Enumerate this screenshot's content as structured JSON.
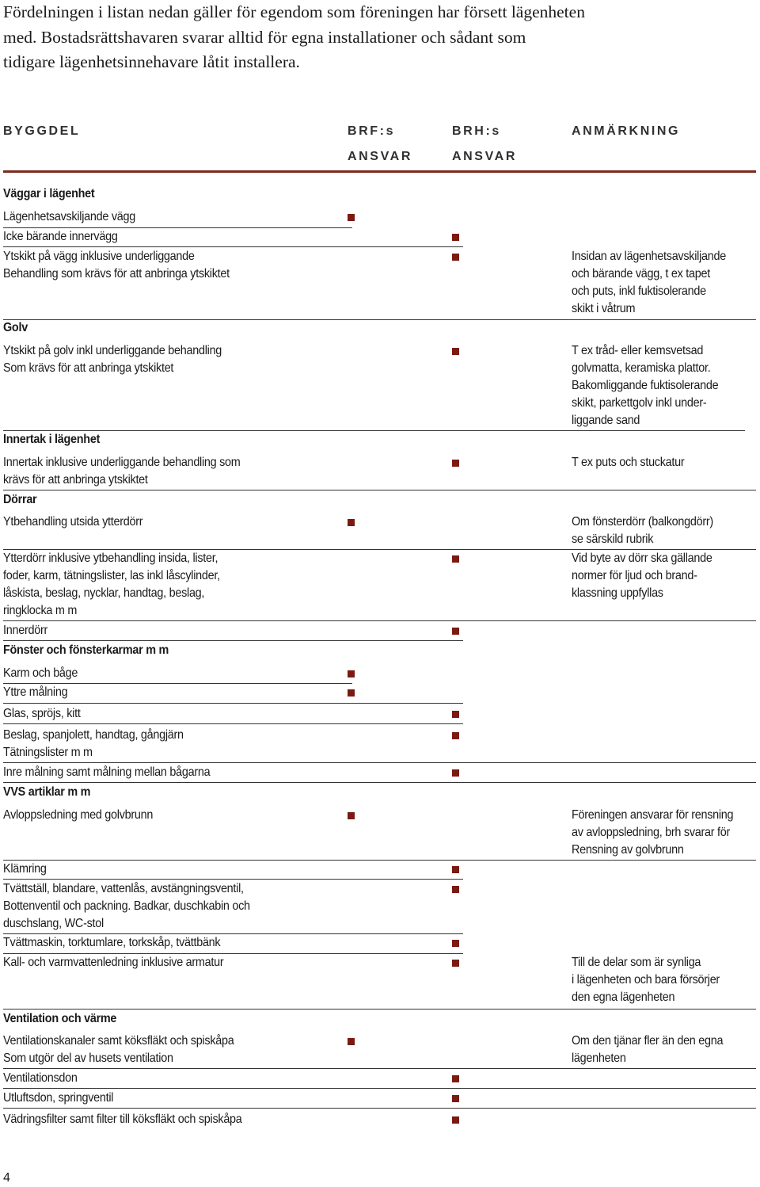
{
  "intro": [
    "Fördelningen i listan nedan gäller för egendom som föreningen har försett lägenheten",
    "med. Bostadsrättshavaren svarar alltid för egna installationer och sådant som",
    "tidigare lägenhetsinnehavare låtit installera."
  ],
  "header": {
    "col1": "BYGGDEL",
    "col2_line1": "BRF:s",
    "col2_line2": "ANSVAR",
    "col3_line1": "BRH:s",
    "col3_line2": "ANSVAR",
    "col4": "ANMÄRKNING"
  },
  "colors": {
    "accent": "#7a2a1c",
    "marker": "#7a1a12"
  },
  "rows": [
    {
      "id": "r01",
      "lines": [
        "Väggar i lägenhet"
      ],
      "bold": true
    },
    {
      "id": "r02",
      "lines": [
        "Lägenhetsavskiljande vägg"
      ],
      "mark": "brf"
    },
    {
      "id": "r03",
      "lines": [
        "Icke bärande innervägg"
      ],
      "mark": "brh"
    },
    {
      "id": "r04",
      "lines": [
        "Ytskikt på vägg inklusive underliggande",
        "Behandling som krävs för att anbringa ytskiktet"
      ],
      "mark": "brh",
      "note": [
        "Insidan av lägenhetsavskiljande",
        "och bärande vägg, t ex tapet",
        "och puts, inkl fuktisolerande",
        "skikt i våtrum"
      ]
    },
    {
      "id": "r05",
      "lines": [
        "Golv"
      ],
      "bold": true
    },
    {
      "id": "r06",
      "lines": [
        "Ytskikt på golv inkl underliggande behandling",
        "Som krävs för att anbringa ytskiktet"
      ],
      "mark": "brh",
      "note": [
        "T ex tråd- eller kemsvetsad",
        "golvmatta, keramiska plattor.",
        "Bakomliggande fuktisolerande",
        "skikt, parkettgolv inkl under-",
        "liggande sand"
      ]
    },
    {
      "id": "r07",
      "lines": [
        "Innertak i lägenhet"
      ],
      "bold": true
    },
    {
      "id": "r08",
      "lines": [
        "Innertak inklusive underliggande behandling som",
        "krävs för att anbringa ytskiktet"
      ],
      "mark": "brh",
      "note": [
        "T ex puts och stuckatur"
      ]
    },
    {
      "id": "r09",
      "lines": [
        "Dörrar"
      ],
      "bold": true
    },
    {
      "id": "r10",
      "lines": [
        "Ytbehandling utsida ytterdörr"
      ],
      "mark": "brf",
      "note": [
        "Om fönsterdörr (balkongdörr)",
        "se särskild rubrik"
      ]
    },
    {
      "id": "r11",
      "lines": [
        "Ytterdörr inklusive ytbehandling insida, lister,",
        "foder, karm, tätningslister, las inkl låscylinder,",
        "låskista, beslag, nycklar, handtag, beslag,",
        "ringklocka m m"
      ],
      "mark": "brh",
      "note": [
        "Vid byte av dörr ska gällande",
        "normer för ljud och brand-",
        "klassning uppfyllas"
      ]
    },
    {
      "id": "r12",
      "lines": [
        "Innerdörr"
      ],
      "mark": "brh"
    },
    {
      "id": "r13",
      "lines": [
        "Fönster och fönsterkarmar m m"
      ],
      "bold": true
    },
    {
      "id": "r14",
      "lines": [
        "Karm och båge"
      ],
      "mark": "brf"
    },
    {
      "id": "r15",
      "lines": [
        "Yttre målning"
      ],
      "mark": "brf"
    },
    {
      "id": "r16",
      "lines": [
        "Glas, spröjs, kitt"
      ],
      "mark": "brh"
    },
    {
      "id": "r17",
      "lines": [
        "Beslag, spanjolett, handtag, gångjärn",
        "Tätningslister m m"
      ],
      "mark": "brh"
    },
    {
      "id": "r18",
      "lines": [
        "Inre målning samt målning mellan bågarna"
      ],
      "mark": "brh"
    },
    {
      "id": "r19",
      "lines": [
        "VVS artiklar m m"
      ],
      "bold": true
    },
    {
      "id": "r20",
      "lines": [
        "Avloppsledning med golvbrunn"
      ],
      "mark": "brf",
      "note": [
        "Föreningen ansvarar för rensning",
        "av avloppsledning, brh svarar för",
        "Rensning av golvbrunn"
      ]
    },
    {
      "id": "r21",
      "lines": [
        "Klämring"
      ],
      "mark": "brh"
    },
    {
      "id": "r22",
      "lines": [
        "Tvättställ, blandare, vattenlås, avstängningsventil,",
        "Bottenventil och packning. Badkar, duschkabin och",
        "duschslang, WC-stol"
      ],
      "mark": "brh"
    },
    {
      "id": "r23",
      "lines": [
        "Tvättmaskin, torktumlare, torkskåp, tvättbänk"
      ],
      "mark": "brh"
    },
    {
      "id": "r24",
      "lines": [
        "Kall- och varmvattenledning inklusive armatur"
      ],
      "mark": "brh",
      "note": [
        "Till de delar som är synliga",
        "i lägenheten och bara försörjer",
        "den egna lägenheten"
      ]
    },
    {
      "id": "r25",
      "lines": [
        "Ventilation och värme"
      ],
      "bold": true
    },
    {
      "id": "r26",
      "lines": [
        "Ventilationskanaler samt köksfläkt och spiskåpa",
        "Som utgör del av husets ventilation"
      ],
      "mark": "brf",
      "note": [
        "Om den tjänar fler än den egna",
        "lägenheten"
      ]
    },
    {
      "id": "r27",
      "lines": [
        "Ventilationsdon"
      ],
      "mark": "brh"
    },
    {
      "id": "r28",
      "lines": [
        "Utluftsdon, springventil"
      ],
      "mark": "brh"
    },
    {
      "id": "r29",
      "lines": [
        "Vädringsfilter samt filter till köksfläkt och spiskåpa"
      ],
      "mark": "brh"
    }
  ],
  "page_number": "4"
}
